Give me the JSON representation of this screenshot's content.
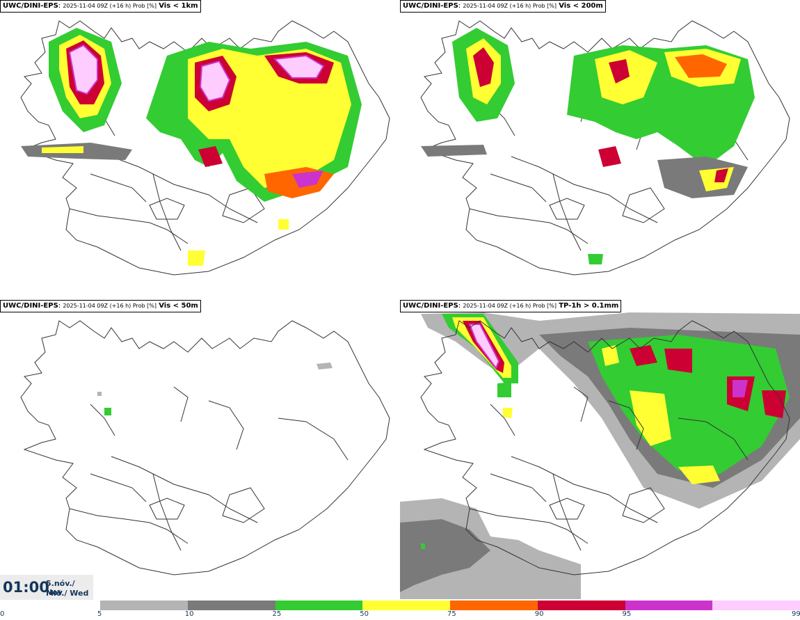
{
  "panels": [
    {
      "model": "UWC/DINI-EPS",
      "meta": "2025-11-04 09Z (+16 h) Prob [%]",
      "var": "Vis < 1km"
    },
    {
      "model": "UWC/DINI-EPS",
      "meta": "2025-11-04 09Z (+16 h) Prob [%]",
      "var": "Vis < 200m"
    },
    {
      "model": "UWC/DINI-EPS",
      "meta": "2025-11-04 09Z (+16 h) Prob [%]",
      "var": "Vis < 50m"
    },
    {
      "model": "UWC/DINI-EPS",
      "meta": "2025-11-04 09Z (+16 h) Prob [%]",
      "var": "TP-1h > 0.1mm"
    }
  ],
  "time": {
    "clock": "01:00",
    "date_line1": "5.nóv./ Nov",
    "date_line2": "Mið./ Wed"
  },
  "colorbar": {
    "ticks": [
      "0",
      "5",
      "10",
      "25",
      "50",
      "75",
      "90",
      "95",
      "99"
    ],
    "colors": [
      "#b4b4b4",
      "#7a7a7a",
      "#33cc33",
      "#ffff33",
      "#ff6600",
      "#cc0033",
      "#cc33cc",
      "#ffccff"
    ]
  },
  "palette": {
    "p5": "#b4b4b4",
    "p10": "#7a7a7a",
    "p25": "#33cc33",
    "p50": "#ffff33",
    "p75": "#ff6600",
    "p90": "#cc0033",
    "p95": "#cc33cc",
    "p99": "#ffccff"
  }
}
